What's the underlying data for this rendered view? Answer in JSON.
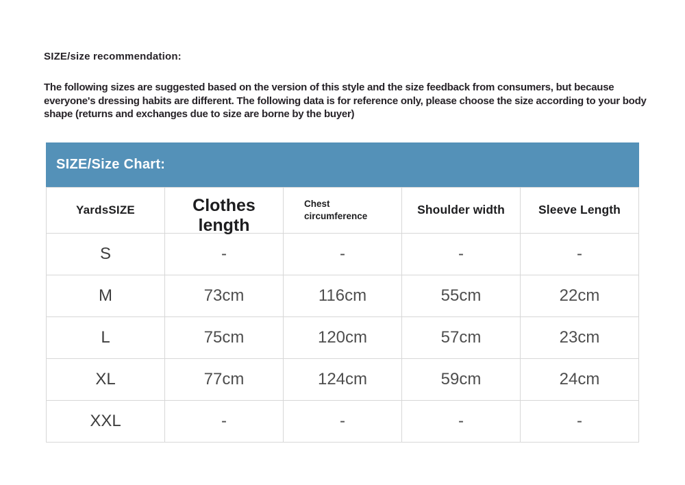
{
  "page": {
    "title": "SIZE/size recommendation:",
    "description": "The following sizes are suggested based on the version of this style and the size feedback from consumers, but because everyone's dressing habits are different. The following data is for reference only, please choose the size according to your body shape (returns and exchanges due to size are borne by the buyer)"
  },
  "size_chart": {
    "title": "SIZE/Size Chart:",
    "accent_color": "#5491b8",
    "columns": [
      "YardsSIZE",
      "Clothes length",
      "Chest circumference",
      "Shoulder width",
      "Sleeve Length"
    ],
    "rows": [
      {
        "size": "S",
        "clothes_length": "-",
        "chest": "-",
        "shoulder": "-",
        "sleeve": "-"
      },
      {
        "size": "M",
        "clothes_length": "73cm",
        "chest": "116cm",
        "shoulder": "55cm",
        "sleeve": "22cm"
      },
      {
        "size": "L",
        "clothes_length": "75cm",
        "chest": "120cm",
        "shoulder": "57cm",
        "sleeve": "23cm"
      },
      {
        "size": "XL",
        "clothes_length": "77cm",
        "chest": "124cm",
        "shoulder": "59cm",
        "sleeve": "24cm"
      },
      {
        "size": "XXL",
        "clothes_length": "-",
        "chest": "-",
        "shoulder": "-",
        "sleeve": "-"
      }
    ]
  }
}
